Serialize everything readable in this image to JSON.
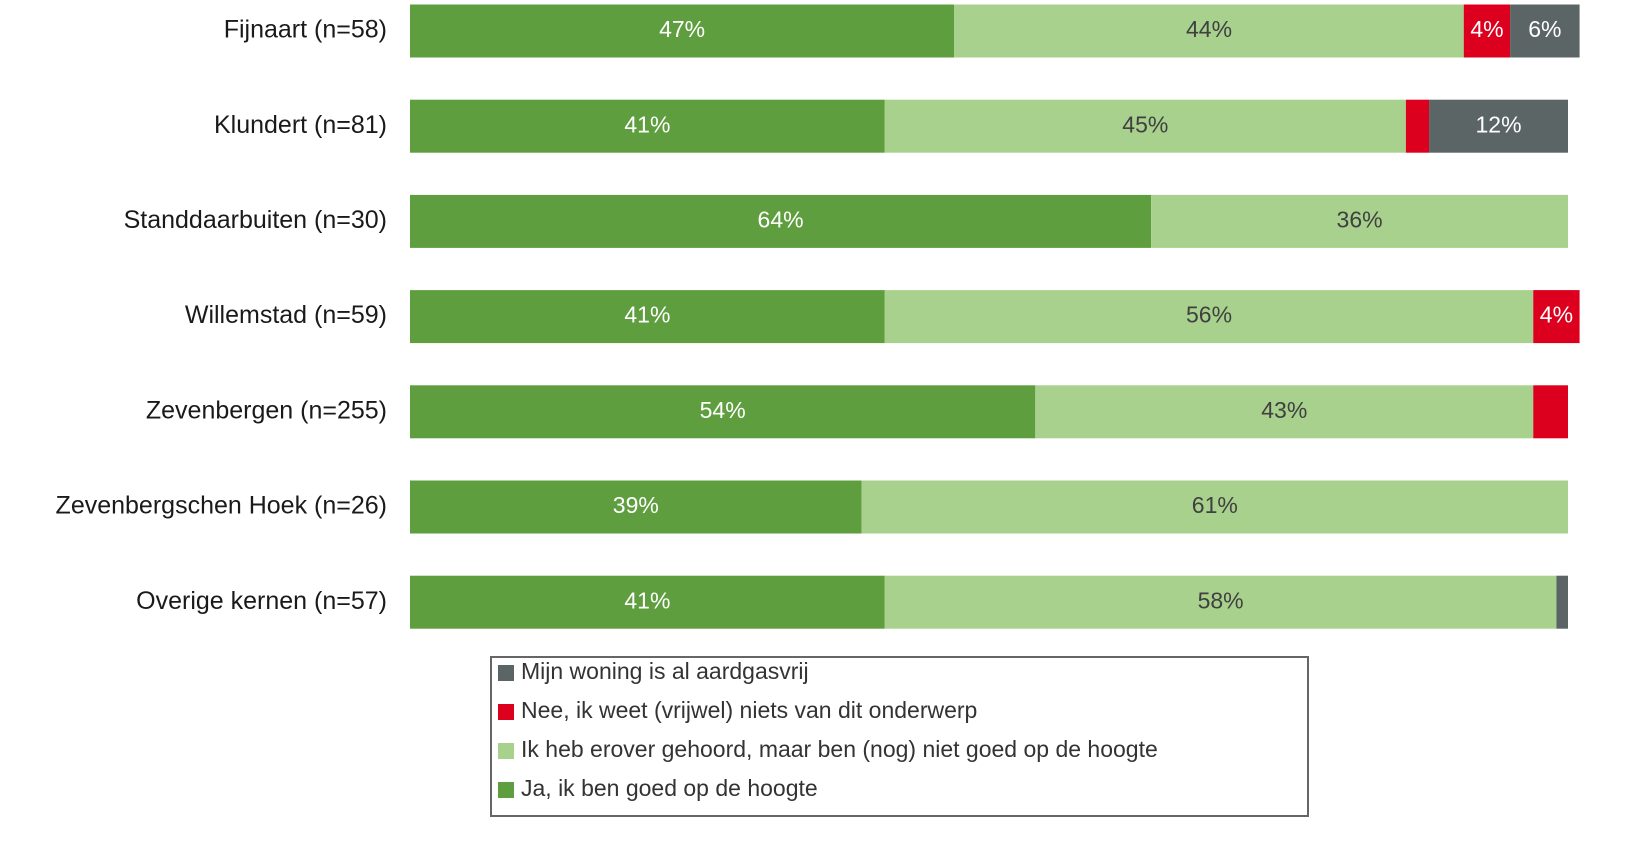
{
  "chart_data": {
    "type": "stacked-bar-horizontal",
    "categories": [
      "Fijnaart (n=58)",
      "Klundert (n=81)",
      "Standdaarbuiten (n=30)",
      "Willemstad (n=59)",
      "Zevenbergen (n=255)",
      "Zevenbergschen Hoek (n=26)",
      "Overige kernen (n=57)"
    ],
    "xlim": [
      0,
      100
    ],
    "series": [
      {
        "name": "Ja, ik ben goed op de hoogte",
        "color": "#5f9e3f",
        "label_color": "#ffffff",
        "values": [
          47,
          41,
          64,
          41,
          54,
          39,
          41
        ],
        "value_labels": [
          "47%",
          "41%",
          "64%",
          "41%",
          "54%",
          "39%",
          "41%"
        ]
      },
      {
        "name": "Ik heb erover gehoord, maar ben (nog) niet goed op de hoogte",
        "color": "#a8d18d",
        "label_color": "#404040",
        "values": [
          44,
          45,
          36,
          56,
          43,
          61,
          58
        ],
        "value_labels": [
          "44%",
          "45%",
          "36%",
          "56%",
          "43%",
          "61%",
          "58%"
        ]
      },
      {
        "name": "Nee, ik weet (vrijwel) niets van dit onderwerp",
        "color": "#dc001e",
        "label_color": "#ffffff",
        "values": [
          4,
          2,
          null,
          4,
          3,
          null,
          null
        ],
        "value_labels": [
          "4%",
          null,
          null,
          "4%",
          null,
          null,
          null
        ]
      },
      {
        "name": "Mijn woning is al aardgasvrij",
        "color": "#5b6566",
        "label_color": "#ffffff",
        "values": [
          6,
          12,
          null,
          null,
          null,
          null,
          1
        ],
        "value_labels": [
          "6%",
          "12%",
          null,
          null,
          null,
          null,
          null
        ]
      }
    ],
    "legend": "bottom"
  }
}
